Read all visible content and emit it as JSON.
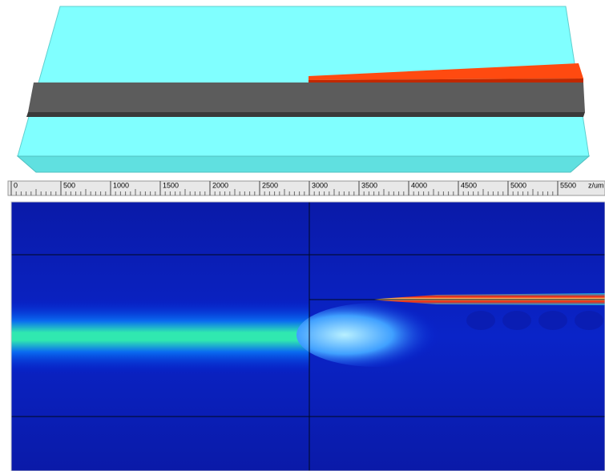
{
  "ruler": {
    "ticks": [
      0,
      500,
      1000,
      1500,
      2000,
      2500,
      3000,
      3500,
      4000,
      4500,
      5000,
      5500
    ],
    "unit": "z/um"
  }
}
